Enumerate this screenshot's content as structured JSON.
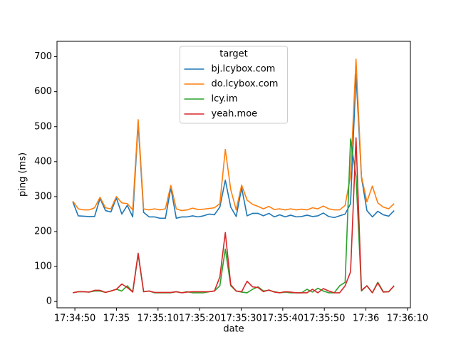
{
  "chart_data": {
    "type": "line",
    "x_label": "date",
    "y_label": "ping (ms)",
    "legend_title": "target",
    "legend": "upper center",
    "x": [
      -0.5,
      0.81,
      2.12,
      3.43,
      4.74,
      6.05,
      7.36,
      8.67,
      9.98,
      11.29,
      12.6,
      13.91,
      15.22,
      16.53,
      17.84,
      19.15,
      20.46,
      21.77,
      23.08,
      24.39,
      25.7,
      27.01,
      28.32,
      29.63,
      30.94,
      32.25,
      33.56,
      34.87,
      36.18,
      37.49,
      38.8,
      40.11,
      41.42,
      42.73,
      44.04,
      45.35,
      46.66,
      47.97,
      49.28,
      50.59,
      51.9,
      53.21,
      54.52,
      55.83,
      57.14,
      58.45,
      59.76,
      61.07,
      62.38,
      63.69,
      65,
      66.31,
      67.62,
      68.93,
      70.24,
      71.55,
      72.86,
      74.17,
      75.48,
      76.79
    ],
    "series": [
      {
        "name": "bj.lcybox.com",
        "color": "#1f77b4",
        "values": [
          285,
          245,
          244,
          243,
          243,
          295,
          260,
          256,
          296,
          250,
          275,
          242,
          510,
          255,
          242,
          242,
          238,
          238,
          325,
          238,
          242,
          242,
          245,
          242,
          245,
          250,
          248,
          270,
          347,
          270,
          243,
          325,
          245,
          252,
          252,
          245,
          252,
          242,
          248,
          242,
          247,
          242,
          243,
          247,
          243,
          245,
          253,
          243,
          240,
          245,
          250,
          280,
          650,
          355,
          260,
          242,
          258,
          248,
          244,
          260
        ]
      },
      {
        "name": "do.lcybox.com",
        "color": "#ff7f0e",
        "values": [
          287,
          265,
          262,
          262,
          268,
          298,
          268,
          265,
          300,
          282,
          280,
          262,
          520,
          265,
          262,
          265,
          262,
          265,
          332,
          265,
          260,
          262,
          267,
          263,
          264,
          266,
          268,
          280,
          435,
          320,
          262,
          333,
          290,
          278,
          272,
          265,
          272,
          263,
          265,
          262,
          265,
          262,
          264,
          262,
          268,
          265,
          273,
          265,
          262,
          262,
          275,
          360,
          693,
          358,
          285,
          330,
          282,
          270,
          265,
          280
        ]
      },
      {
        "name": "lcy.im",
        "color": "#2ca02c",
        "values": [
          25,
          28,
          28,
          27,
          30,
          30,
          26,
          30,
          35,
          30,
          45,
          27,
          135,
          28,
          30,
          25,
          25,
          25,
          25,
          28,
          25,
          28,
          25,
          25,
          25,
          28,
          30,
          45,
          150,
          45,
          30,
          27,
          25,
          35,
          42,
          30,
          32,
          28,
          25,
          27,
          25,
          25,
          25,
          35,
          27,
          38,
          30,
          25,
          25,
          45,
          55,
          465,
          358,
          30,
          45,
          25,
          55,
          28,
          28,
          45
        ]
      },
      {
        "name": "yeah.moe",
        "color": "#d62728",
        "values": [
          25,
          28,
          28,
          27,
          32,
          32,
          26,
          30,
          35,
          50,
          40,
          27,
          138,
          28,
          30,
          26,
          26,
          26,
          26,
          28,
          25,
          27,
          28,
          28,
          28,
          28,
          30,
          70,
          197,
          48,
          30,
          28,
          58,
          42,
          40,
          28,
          33,
          27,
          25,
          28,
          27,
          25,
          25,
          25,
          35,
          25,
          37,
          30,
          25,
          25,
          45,
          85,
          468,
          32,
          45,
          25,
          53,
          27,
          28,
          45
        ]
      }
    ],
    "xlim": [
      -4.3,
      80.7
    ],
    "xticks": [
      {
        "value": 0,
        "label": "17:34:50"
      },
      {
        "value": 10,
        "label": "17:35"
      },
      {
        "value": 20,
        "label": "17:35:10"
      },
      {
        "value": 30,
        "label": "17:35:20"
      },
      {
        "value": 40,
        "label": "17:35:30"
      },
      {
        "value": 50,
        "label": "17:35:40"
      },
      {
        "value": 60,
        "label": "17:35:50"
      },
      {
        "value": 70,
        "label": "17:36"
      },
      {
        "value": 80,
        "label": "17:36:10"
      }
    ],
    "ylim": [
      -18,
      744
    ],
    "yticks": [
      0,
      100,
      200,
      300,
      400,
      500,
      600,
      700
    ]
  }
}
